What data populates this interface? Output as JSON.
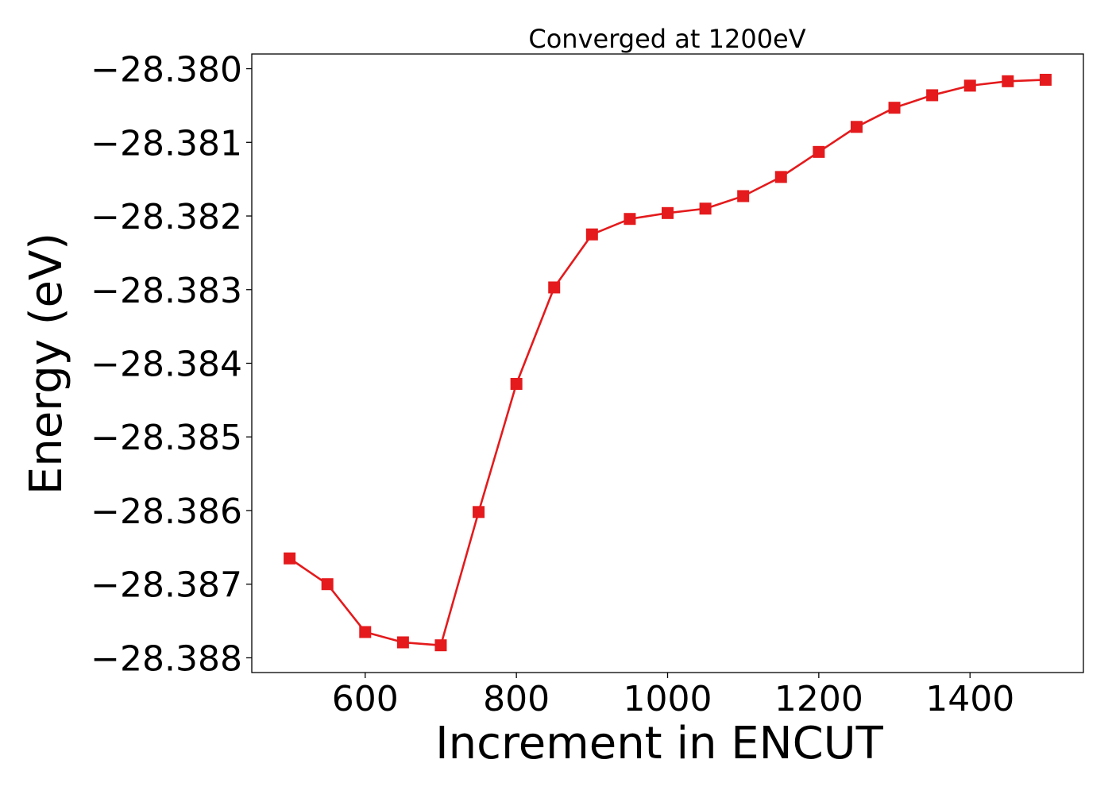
{
  "chart_data": {
    "type": "line",
    "title": "Converged at 1200eV",
    "xlabel": "Increment in ENCUT",
    "ylabel": "Energy (eV)",
    "xlim": [
      450,
      1550
    ],
    "ylim": [
      -28.3882,
      -28.3798
    ],
    "x_ticks": [
      600,
      800,
      1000,
      1200,
      1400
    ],
    "x_tick_labels": [
      "600",
      "800",
      "1000",
      "1200",
      "1400"
    ],
    "y_ticks": [
      -28.38,
      -28.381,
      -28.382,
      -28.383,
      -28.384,
      -28.385,
      -28.386,
      -28.387,
      -28.388
    ],
    "y_tick_labels": [
      "−28.380",
      "−28.381",
      "−28.382",
      "−28.383",
      "−28.384",
      "−28.385",
      "−28.386",
      "−28.387",
      "−28.388"
    ],
    "grid": false,
    "series": [
      {
        "color": "#e41a1c",
        "marker": "square",
        "x": [
          500,
          550,
          600,
          650,
          700,
          750,
          800,
          850,
          900,
          950,
          1000,
          1050,
          1100,
          1150,
          1200,
          1250,
          1300,
          1350,
          1400,
          1450,
          1500
        ],
        "y": [
          -28.38665,
          -28.387,
          -28.38765,
          -28.38779,
          -28.38783,
          -28.38602,
          -28.38428,
          -28.38297,
          -28.38225,
          -28.38204,
          -28.38196,
          -28.3819,
          -28.38173,
          -28.38147,
          -28.38113,
          -28.38079,
          -28.38053,
          -28.38036,
          -28.38023,
          -28.38017,
          -28.38015
        ]
      }
    ]
  }
}
